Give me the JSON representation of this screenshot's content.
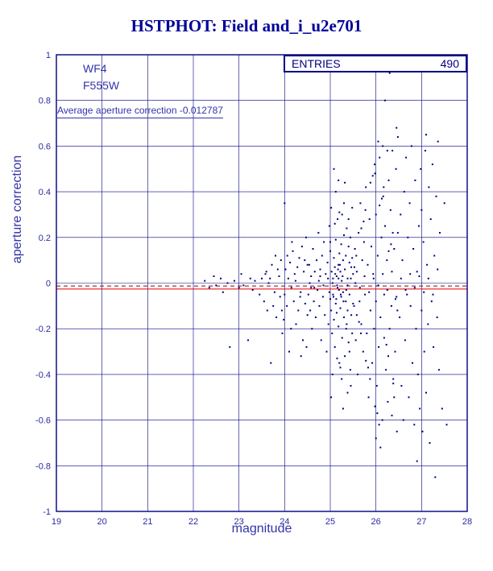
{
  "chart_data": {
    "type": "scatter",
    "title": "HSTPHOT: Field and_i_u2e701",
    "xlabel": "magnitude",
    "ylabel": "aperture correction",
    "xlim": [
      19,
      28
    ],
    "ylim": [
      -1,
      1
    ],
    "xticks": [
      19,
      20,
      21,
      22,
      23,
      24,
      25,
      26,
      27,
      28
    ],
    "xtick_labels": [
      "19",
      "20",
      "21",
      "22",
      "23",
      "24",
      "25",
      "26",
      "27",
      "28"
    ],
    "yticks": [
      -1,
      -0.8,
      -0.6,
      -0.4,
      -0.2,
      0,
      0.2,
      0.4,
      0.6,
      0.8,
      1
    ],
    "ytick_labels": [
      "-1",
      "-0.8",
      "-0.6",
      "-0.4",
      "-0.2",
      "0",
      "0.2",
      "0.4",
      "0.6",
      "0.8",
      "1"
    ],
    "grid": true,
    "detector": "WF4",
    "filter": "F555W",
    "entries_label": "ENTRIES",
    "entries": "490",
    "annotation": "Average aperture correction -0.012787",
    "average_aperture_correction": -0.012787,
    "reference_lines": [
      {
        "value": -0.0128,
        "style": "dashed",
        "color": "#990000"
      },
      {
        "value": -0.026,
        "style": "solid",
        "color": "#dd0000"
      }
    ],
    "colors": {
      "title": "#000099",
      "axis": "#2a2aa0",
      "grid": "#000080",
      "frame": "#000080",
      "points": "#000080"
    },
    "points": [
      [
        22.25,
        0.01
      ],
      [
        22.35,
        -0.02
      ],
      [
        22.45,
        0.03
      ],
      [
        22.5,
        -0.01
      ],
      [
        22.6,
        0.02
      ],
      [
        22.65,
        -0.04
      ],
      [
        22.75,
        0.0
      ],
      [
        22.8,
        -0.28
      ],
      [
        22.9,
        0.01
      ],
      [
        23.0,
        -0.02
      ],
      [
        23.05,
        0.04
      ],
      [
        23.1,
        -0.01
      ],
      [
        23.2,
        -0.25
      ],
      [
        23.25,
        0.02
      ],
      [
        23.3,
        -0.03
      ],
      [
        23.35,
        0.01
      ],
      [
        23.45,
        -0.05
      ],
      [
        23.5,
        0.02
      ],
      [
        23.55,
        -0.08
      ],
      [
        23.6,
        0.05
      ],
      [
        23.62,
        -0.12
      ],
      [
        23.68,
        0.02
      ],
      [
        23.7,
        -0.35
      ],
      [
        23.72,
        0.08
      ],
      [
        23.78,
        -0.04
      ],
      [
        23.8,
        0.12
      ],
      [
        23.82,
        -0.15
      ],
      [
        23.88,
        0.03
      ],
      [
        23.9,
        -0.06
      ],
      [
        23.92,
        0.1
      ],
      [
        23.95,
        -0.22
      ],
      [
        24.0,
        0.35
      ],
      [
        24.0,
        -0.05
      ],
      [
        24.02,
        0.06
      ],
      [
        24.05,
        -0.1
      ],
      [
        24.08,
        0.02
      ],
      [
        24.1,
        -0.3
      ],
      [
        24.12,
        0.09
      ],
      [
        24.15,
        -0.02
      ],
      [
        24.18,
        0.14
      ],
      [
        24.2,
        -0.08
      ],
      [
        24.22,
        0.04
      ],
      [
        24.25,
        -0.18
      ],
      [
        24.28,
        0.07
      ],
      [
        24.3,
        -0.12
      ],
      [
        24.32,
        0.11
      ],
      [
        24.35,
        -0.04
      ],
      [
        24.38,
        0.16
      ],
      [
        24.4,
        -0.25
      ],
      [
        24.42,
        0.05
      ],
      [
        24.45,
        -0.09
      ],
      [
        24.47,
        0.2
      ],
      [
        24.5,
        -0.14
      ],
      [
        24.5,
        0.08
      ],
      [
        23.65,
        0.0
      ],
      [
        23.75,
        -0.1
      ],
      [
        23.85,
        0.06
      ],
      [
        23.98,
        -0.16
      ],
      [
        24.06,
        0.12
      ],
      [
        24.14,
        -0.2
      ],
      [
        24.24,
        0.01
      ],
      [
        24.34,
        -0.06
      ],
      [
        24.44,
        0.1
      ],
      [
        24.48,
        -0.28
      ],
      [
        23.58,
        0.04
      ],
      [
        23.94,
        -0.12
      ],
      [
        24.16,
        0.18
      ],
      [
        24.36,
        -0.32
      ],
      [
        24.52,
        -0.05
      ],
      [
        24.54,
        0.08
      ],
      [
        24.56,
        -0.12
      ],
      [
        24.58,
        0.03
      ],
      [
        24.6,
        -0.2
      ],
      [
        24.62,
        0.15
      ],
      [
        24.64,
        -0.08
      ],
      [
        24.66,
        0.05
      ],
      [
        24.68,
        -0.15
      ],
      [
        24.7,
        0.1
      ],
      [
        24.72,
        -0.03
      ],
      [
        24.74,
        0.22
      ],
      [
        24.76,
        -0.1
      ],
      [
        24.78,
        0.06
      ],
      [
        24.8,
        -0.25
      ],
      [
        24.82,
        0.12
      ],
      [
        24.84,
        -0.06
      ],
      [
        24.86,
        0.18
      ],
      [
        24.88,
        -0.14
      ],
      [
        24.9,
        0.04
      ],
      [
        24.92,
        -0.3
      ],
      [
        24.94,
        0.09
      ],
      [
        24.96,
        -0.18
      ],
      [
        24.98,
        0.25
      ],
      [
        25.0,
        -0.07
      ],
      [
        25.0,
        0.14
      ],
      [
        25.02,
        -0.12
      ],
      [
        25.02,
        0.33
      ],
      [
        25.04,
        -0.22
      ],
      [
        25.06,
        0.02
      ],
      [
        25.06,
        -0.05
      ],
      [
        25.08,
        0.11
      ],
      [
        25.08,
        -0.16
      ],
      [
        25.1,
        0.07
      ],
      [
        25.1,
        -0.28
      ],
      [
        25.12,
        0.19
      ],
      [
        25.12,
        -0.09
      ],
      [
        25.14,
        0.03
      ],
      [
        25.14,
        -0.13
      ],
      [
        25.16,
        0.28
      ],
      [
        25.16,
        -0.02
      ],
      [
        25.18,
        0.08
      ],
      [
        25.18,
        -0.19
      ],
      [
        25.2,
        0.13
      ],
      [
        25.2,
        -0.35
      ],
      [
        25.22,
        0.05
      ],
      [
        25.22,
        -0.11
      ],
      [
        25.24,
        0.17
      ],
      [
        25.24,
        -0.06
      ],
      [
        25.26,
        0.3
      ],
      [
        25.26,
        -0.24
      ],
      [
        25.28,
        0.1
      ],
      [
        25.28,
        -0.04
      ],
      [
        25.3,
        0.21
      ],
      [
        25.3,
        -0.15
      ],
      [
        25.32,
        0.06
      ],
      [
        25.32,
        -0.32
      ],
      [
        25.34,
        0.12
      ],
      [
        25.34,
        -0.08
      ],
      [
        25.36,
        0.24
      ],
      [
        25.36,
        -0.18
      ],
      [
        25.38,
        0.02
      ],
      [
        25.38,
        -0.12
      ],
      [
        25.4,
        0.16
      ],
      [
        25.4,
        -0.26
      ],
      [
        25.42,
        0.09
      ],
      [
        25.42,
        -0.05
      ],
      [
        25.44,
        0.2
      ],
      [
        25.44,
        -0.38
      ],
      [
        25.46,
        0.07
      ],
      [
        25.46,
        -0.14
      ],
      [
        25.48,
        0.11
      ],
      [
        25.48,
        -0.22
      ],
      [
        25.5,
        0.04
      ],
      [
        25.5,
        -0.09
      ],
      [
        24.55,
        0.0
      ],
      [
        24.65,
        -0.02
      ],
      [
        24.75,
        0.01
      ],
      [
        24.85,
        -0.01
      ],
      [
        24.95,
        0.02
      ],
      [
        25.05,
        0.0
      ],
      [
        25.15,
        -0.01
      ],
      [
        25.25,
        0.01
      ],
      [
        25.35,
        -0.03
      ],
      [
        25.45,
        0.02
      ],
      [
        24.58,
        -0.02
      ],
      [
        24.78,
        0.03
      ],
      [
        24.98,
        -0.04
      ],
      [
        25.18,
        0.02
      ],
      [
        25.38,
        -0.01
      ],
      [
        25.03,
        0.05
      ],
      [
        25.07,
        -0.06
      ],
      [
        25.11,
        0.04
      ],
      [
        25.13,
        -0.07
      ],
      [
        25.17,
        0.06
      ],
      [
        25.19,
        -0.03
      ],
      [
        25.21,
        0.08
      ],
      [
        25.23,
        -0.05
      ],
      [
        25.27,
        0.03
      ],
      [
        25.29,
        -0.08
      ],
      [
        25.0,
        0.18
      ],
      [
        25.05,
        -0.4
      ],
      [
        25.1,
        0.26
      ],
      [
        25.15,
        -0.33
      ],
      [
        25.2,
        0.31
      ],
      [
        25.25,
        -0.42
      ],
      [
        25.3,
        0.35
      ],
      [
        25.35,
        -0.2
      ],
      [
        25.4,
        0.28
      ],
      [
        25.45,
        -0.45
      ],
      [
        25.02,
        -0.5
      ],
      [
        25.12,
        0.4
      ],
      [
        25.22,
        -0.37
      ],
      [
        25.32,
        0.44
      ],
      [
        25.42,
        -0.3
      ],
      [
        25.08,
        0.5
      ],
      [
        25.28,
        -0.55
      ],
      [
        25.48,
        0.33
      ],
      [
        25.18,
        0.45
      ],
      [
        25.38,
        -0.48
      ],
      [
        25.52,
        -0.1
      ],
      [
        25.54,
        0.15
      ],
      [
        25.56,
        -0.25
      ],
      [
        25.58,
        0.05
      ],
      [
        25.6,
        -0.4
      ],
      [
        25.62,
        0.22
      ],
      [
        25.64,
        -0.08
      ],
      [
        25.66,
        0.35
      ],
      [
        25.68,
        -0.18
      ],
      [
        25.7,
        0.1
      ],
      [
        25.72,
        -0.3
      ],
      [
        25.74,
        0.18
      ],
      [
        25.76,
        -0.05
      ],
      [
        25.78,
        0.42
      ],
      [
        25.8,
        -0.22
      ],
      [
        25.82,
        0.08
      ],
      [
        25.84,
        -0.5
      ],
      [
        25.86,
        0.28
      ],
      [
        25.88,
        -0.12
      ],
      [
        25.9,
        0.16
      ],
      [
        25.92,
        -0.35
      ],
      [
        25.94,
        0.04
      ],
      [
        25.96,
        -0.2
      ],
      [
        25.98,
        0.48
      ],
      [
        26.0,
        -0.08
      ],
      [
        26.0,
        0.3
      ],
      [
        26.02,
        -0.45
      ],
      [
        26.04,
        0.12
      ],
      [
        26.06,
        -0.28
      ],
      [
        26.08,
        0.55
      ],
      [
        26.1,
        -0.15
      ],
      [
        26.12,
        0.2
      ],
      [
        26.14,
        -0.6
      ],
      [
        26.16,
        0.38
      ],
      [
        26.18,
        -0.05
      ],
      [
        26.2,
        0.25
      ],
      [
        26.22,
        -0.38
      ],
      [
        26.24,
        0.1
      ],
      [
        26.26,
        -0.52
      ],
      [
        26.28,
        0.45
      ],
      [
        26.3,
        -0.2
      ],
      [
        26.32,
        0.32
      ],
      [
        26.34,
        -0.1
      ],
      [
        26.36,
        0.58
      ],
      [
        26.38,
        -0.42
      ],
      [
        26.4,
        0.15
      ],
      [
        26.42,
        -0.3
      ],
      [
        26.44,
        0.5
      ],
      [
        26.46,
        -0.65
      ],
      [
        26.48,
        0.22
      ],
      [
        25.55,
        0.0
      ],
      [
        25.65,
        -0.02
      ],
      [
        25.75,
        0.03
      ],
      [
        25.85,
        -0.04
      ],
      [
        25.95,
        0.02
      ],
      [
        26.05,
        -0.01
      ],
      [
        26.15,
        0.04
      ],
      [
        26.25,
        -0.03
      ],
      [
        26.35,
        0.05
      ],
      [
        26.45,
        -0.06
      ],
      [
        25.58,
        -0.14
      ],
      [
        25.68,
        0.24
      ],
      [
        25.78,
        -0.34
      ],
      [
        25.88,
        0.44
      ],
      [
        25.98,
        -0.54
      ],
      [
        26.08,
        0.34
      ],
      [
        26.18,
        -0.24
      ],
      [
        26.28,
        0.14
      ],
      [
        26.38,
        -0.44
      ],
      [
        26.48,
        0.64
      ],
      [
        25.53,
        0.07
      ],
      [
        25.63,
        -0.17
      ],
      [
        25.73,
        0.27
      ],
      [
        25.83,
        -0.37
      ],
      [
        25.93,
        0.47
      ],
      [
        26.03,
        -0.57
      ],
      [
        26.13,
        0.37
      ],
      [
        26.23,
        -0.27
      ],
      [
        26.33,
        0.17
      ],
      [
        26.43,
        -0.07
      ],
      [
        25.57,
        0.12
      ],
      [
        25.67,
        -0.22
      ],
      [
        25.77,
        0.32
      ],
      [
        25.87,
        -0.42
      ],
      [
        25.97,
        0.52
      ],
      [
        26.07,
        -0.62
      ],
      [
        26.17,
        0.42
      ],
      [
        26.27,
        -0.32
      ],
      [
        26.37,
        0.22
      ],
      [
        26.47,
        -0.12
      ],
      [
        26.3,
        0.92
      ],
      [
        26.2,
        0.8
      ],
      [
        26.45,
        0.68
      ],
      [
        26.1,
        -0.72
      ],
      [
        26.35,
        -0.58
      ],
      [
        26.05,
        0.62
      ],
      [
        26.25,
        0.58
      ],
      [
        26.4,
        -0.5
      ],
      [
        26.15,
        0.6
      ],
      [
        26.0,
        -0.68
      ],
      [
        26.52,
        -0.15
      ],
      [
        26.54,
        0.3
      ],
      [
        26.56,
        -0.45
      ],
      [
        26.58,
        0.1
      ],
      [
        26.6,
        -0.6
      ],
      [
        26.62,
        0.4
      ],
      [
        26.64,
        -0.25
      ],
      [
        26.66,
        0.55
      ],
      [
        26.68,
        -0.05
      ],
      [
        26.7,
        0.2
      ],
      [
        26.72,
        -0.5
      ],
      [
        26.74,
        0.35
      ],
      [
        26.76,
        -0.1
      ],
      [
        26.78,
        0.6
      ],
      [
        26.8,
        -0.35
      ],
      [
        26.82,
        0.15
      ],
      [
        26.84,
        -0.62
      ],
      [
        26.86,
        0.45
      ],
      [
        26.88,
        -0.2
      ],
      [
        26.9,
        0.05
      ],
      [
        26.92,
        -0.4
      ],
      [
        26.94,
        0.25
      ],
      [
        26.96,
        -0.55
      ],
      [
        26.98,
        0.5
      ],
      [
        27.0,
        -0.12
      ],
      [
        27.0,
        0.32
      ],
      [
        27.02,
        -0.65
      ],
      [
        27.04,
        0.18
      ],
      [
        27.06,
        -0.3
      ],
      [
        27.08,
        0.58
      ],
      [
        27.1,
        -0.48
      ],
      [
        27.12,
        0.08
      ],
      [
        27.14,
        -0.18
      ],
      [
        27.16,
        0.42
      ],
      [
        27.18,
        -0.7
      ],
      [
        27.2,
        0.28
      ],
      [
        27.22,
        -0.08
      ],
      [
        27.24,
        0.52
      ],
      [
        27.26,
        -0.28
      ],
      [
        27.28,
        0.12
      ],
      [
        27.3,
        -0.85
      ],
      [
        27.32,
        0.38
      ],
      [
        27.34,
        -0.15
      ],
      [
        27.36,
        0.62
      ],
      [
        27.38,
        -0.38
      ],
      [
        27.4,
        0.22
      ],
      [
        27.45,
        -0.55
      ],
      [
        27.5,
        0.35
      ],
      [
        27.55,
        -0.62
      ],
      [
        26.55,
        0.02
      ],
      [
        26.65,
        -0.03
      ],
      [
        26.75,
        0.04
      ],
      [
        26.85,
        -0.02
      ],
      [
        26.95,
        0.03
      ],
      [
        27.05,
        -0.04
      ],
      [
        27.15,
        0.02
      ],
      [
        27.25,
        -0.05
      ],
      [
        27.35,
        0.06
      ],
      [
        26.9,
        -0.78
      ],
      [
        27.1,
        0.65
      ]
    ]
  }
}
